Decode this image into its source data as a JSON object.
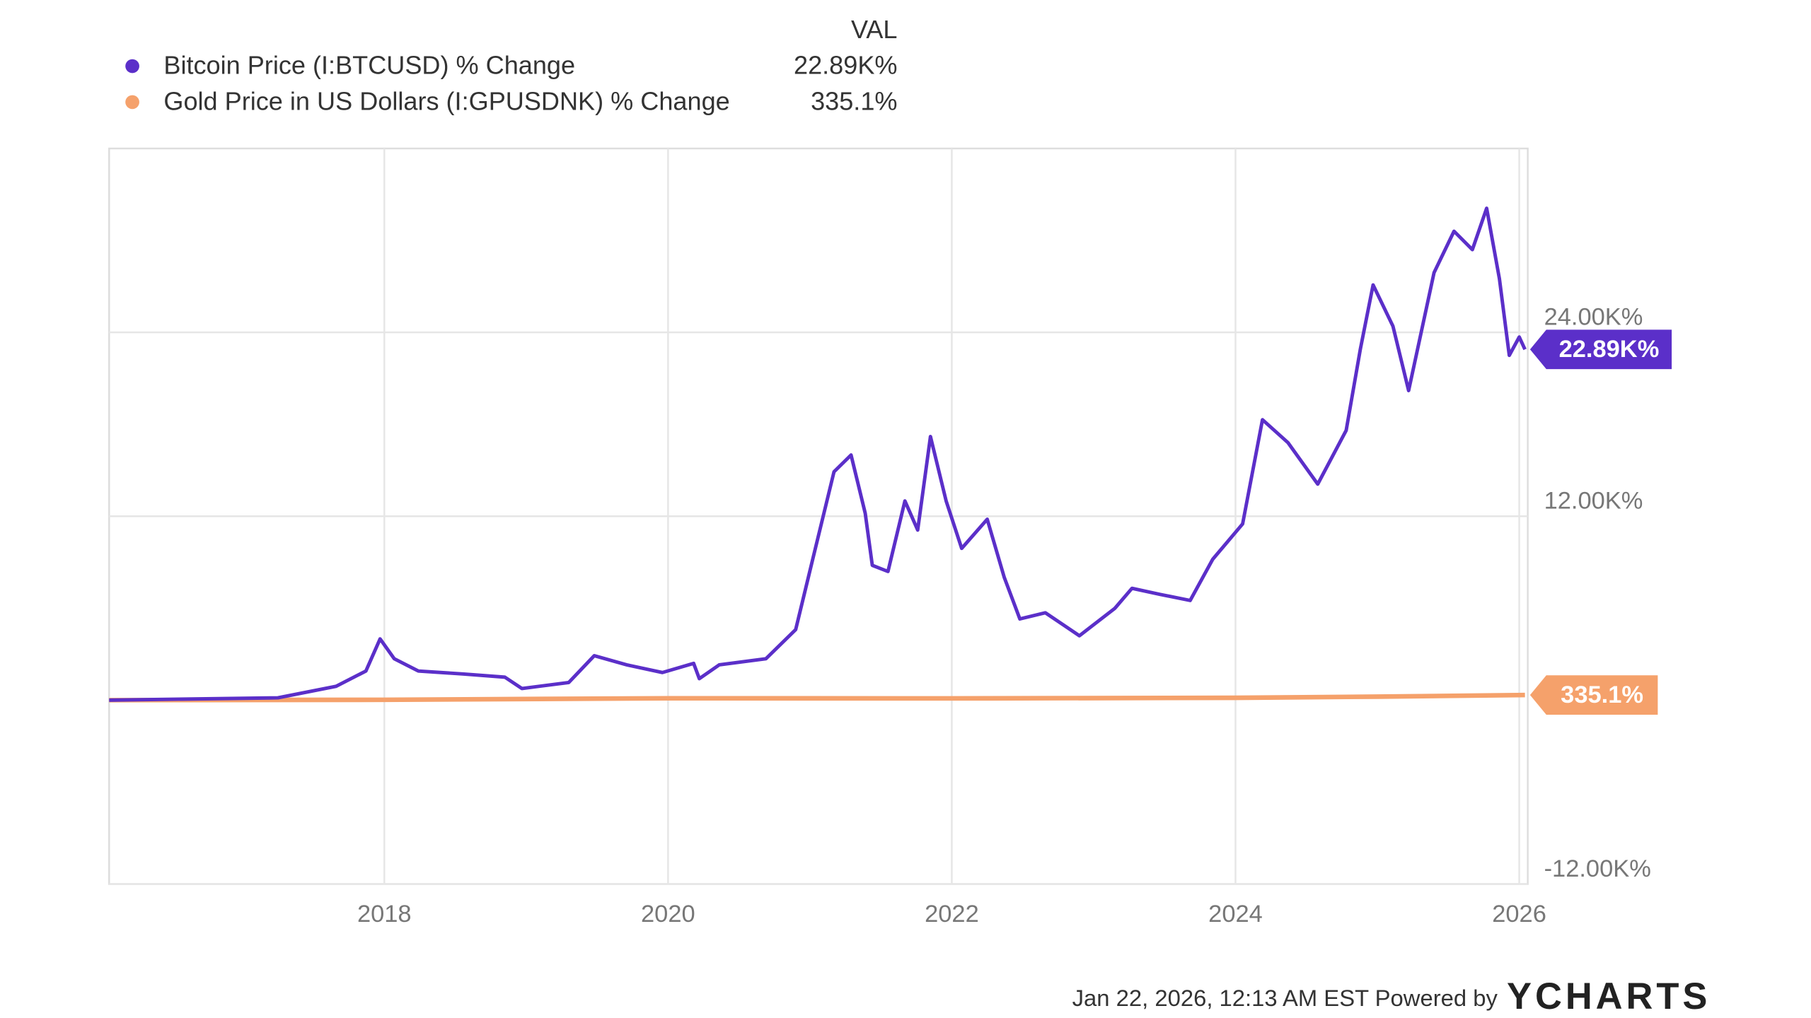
{
  "chart_data": {
    "type": "line",
    "legend_header": "VAL",
    "xlim": [
      2016.06,
      2026.06
    ],
    "xticks": [
      2018,
      2020,
      2022,
      2024,
      2026
    ],
    "ylim": [
      -12000,
      36000
    ],
    "yticks": [
      {
        "value": -12000,
        "label": "-12.00K%"
      },
      {
        "value": 12000,
        "label": "12.00K%"
      },
      {
        "value": 24000,
        "label": "24.00K%"
      }
    ],
    "grid": true,
    "series": [
      {
        "name": "Bitcoin Price (I:BTCUSD) % Change",
        "color": "#5b2fc9",
        "last_value_label": "22.89K%",
        "x": [
          2016.06,
          2017.25,
          2017.66,
          2017.87,
          2017.97,
          2018.07,
          2018.24,
          2018.56,
          2018.85,
          2018.97,
          2019.3,
          2019.48,
          2019.71,
          2019.96,
          2020.18,
          2020.22,
          2020.36,
          2020.69,
          2020.9,
          2021.02,
          2021.17,
          2021.29,
          2021.39,
          2021.44,
          2021.55,
          2021.67,
          2021.76,
          2021.85,
          2021.96,
          2022.07,
          2022.25,
          2022.37,
          2022.48,
          2022.66,
          2022.9,
          2023.15,
          2023.27,
          2023.47,
          2023.68,
          2023.84,
          2024.05,
          2024.19,
          2024.37,
          2024.58,
          2024.78,
          2024.88,
          2024.97,
          2025.11,
          2025.22,
          2025.4,
          2025.54,
          2025.67,
          2025.77,
          2025.86,
          2025.93,
          2026.0,
          2026.04
        ],
        "values": [
          0,
          150,
          900,
          1900,
          4000,
          2700,
          1900,
          1700,
          1500,
          760,
          1150,
          2900,
          2300,
          1800,
          2400,
          1400,
          2300,
          2700,
          4600,
          9200,
          14900,
          16000,
          12200,
          8800,
          8400,
          13000,
          11100,
          17200,
          13000,
          9900,
          11800,
          8000,
          5300,
          5700,
          4200,
          6000,
          7300,
          6900,
          6500,
          9200,
          11500,
          18300,
          16800,
          14100,
          17600,
          22900,
          27100,
          24400,
          20200,
          27900,
          30600,
          29400,
          32100,
          27500,
          22500,
          23700,
          22890
        ]
      },
      {
        "name": "Gold Price in US Dollars (I:GPUSDNK) % Change",
        "color": "#f5a16b",
        "last_value_label": "335.1%",
        "x": [
          2016.06,
          2018.0,
          2020.0,
          2022.0,
          2024.0,
          2025.0,
          2026.04
        ],
        "values": [
          0,
          20,
          120,
          110,
          150,
          230,
          335.1
        ]
      }
    ],
    "footer": "Jan 22, 2026, 12:13 AM EST Powered by",
    "brand": "YCHARTS"
  }
}
